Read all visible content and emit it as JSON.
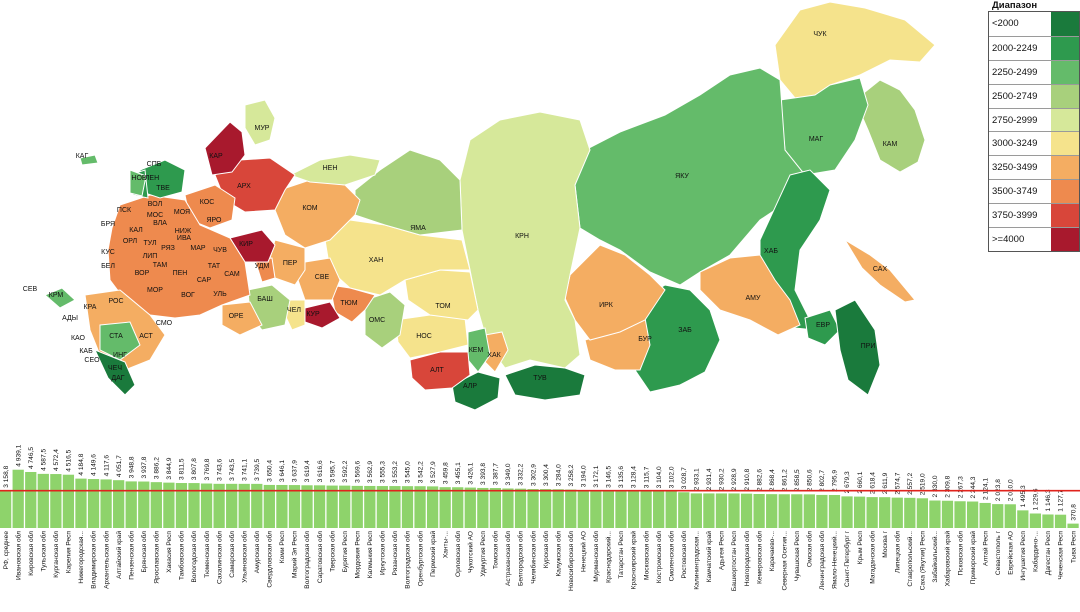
{
  "legend": {
    "title": "Диапазон",
    "items": [
      {
        "label": "<2000",
        "color": "#1a7a3c"
      },
      {
        "label": "2000-2249",
        "color": "#2e9a4e"
      },
      {
        "label": "2250-2499",
        "color": "#64bb6a"
      },
      {
        "label": "2500-2749",
        "color": "#a8d07c"
      },
      {
        "label": "2750-2999",
        "color": "#d6e89a"
      },
      {
        "label": "3000-3249",
        "color": "#f5e38c"
      },
      {
        "label": "3250-3499",
        "color": "#f4ad62"
      },
      {
        "label": "3500-3749",
        "color": "#ee8a4e"
      },
      {
        "label": "3750-3999",
        "color": "#d8463a"
      },
      {
        "label": ">=4000",
        "color": "#a8192d"
      }
    ]
  },
  "map_labels": [
    "ЧУК",
    "МУР",
    "КАР",
    "НЕН",
    "АРХ",
    "КАГ",
    "СПБ",
    "ЛЕН",
    "КОМ",
    "ЯМА",
    "КРН",
    "ЯКУ",
    "МАГ",
    "КАМ",
    "ХАН",
    "ТОМ",
    "НОС",
    "КЕМ",
    "АЛТ",
    "АЛР",
    "ТУВ",
    "ХАК",
    "ИРК",
    "БУР",
    "ЗАБ",
    "АМУ",
    "ХАБ",
    "ЕВР",
    "ПРИ",
    "САХ",
    "СВЕ",
    "ТЮМ",
    "КУР",
    "ОМС",
    "ЧЕЛ",
    "БАШ",
    "ОРЕ",
    "ПЕР",
    "УДМ",
    "КИР",
    "СЕВ",
    "КРМ",
    "АДЫ",
    "КРА",
    "РОС",
    "СТА",
    "КАО",
    "КАБ",
    "СЕО",
    "ИНГ",
    "ЧЕЧ",
    "ДАГ",
    "КАЛ",
    "БРЯ",
    "ОРЛ",
    "КУС",
    "БЕЛ",
    "ВОР",
    "ЛИП",
    "ТУЛ",
    "РЯЗ",
    "ТАМ",
    "ПЕН",
    "МОР",
    "ВОГ",
    "САР",
    "УЛЬ",
    "САМ",
    "ТАТ",
    "ЧУВ",
    "МАР",
    "НИЖ",
    "ИВА",
    "ВЛА",
    "МОС",
    "МОЯ",
    "ЯРО",
    "КОС",
    "ВОЛ",
    "ТВЕ",
    "НОВ",
    "ПСК",
    "СМО",
    "АСТ",
    "КЛМ"
  ],
  "chart_data": {
    "type": "bar",
    "reference_line": 3158.8,
    "categories": [
      "РФ, среднее",
      "Ивановская обл",
      "Кировская обл",
      "Тульская обл",
      "Курганская обл",
      "Карелия Респ",
      "Нижегородская...",
      "Владимирская обл",
      "Архангельская обл",
      "Алтайский край",
      "Пензенская обл",
      "Брянская обл",
      "Ярославская обл",
      "Хакасия Респ",
      "Тамбовская обл",
      "Вологодская обл",
      "Тюменская обл",
      "Сахалинская обл",
      "Самарская обл",
      "Ульяновская обл",
      "Амурская обл",
      "Свердловская обл",
      "Коми Респ",
      "Марий Эл Респ",
      "Волгоградская обл",
      "Саратовская обл",
      "Тверская обл",
      "Бурятия Респ",
      "Мордовия Респ",
      "Калмыкия Респ",
      "Иркутская обл",
      "Рязанская обл",
      "Волгоградская обл",
      "Оренбургская обл",
      "Пермский край",
      "Ханты-...",
      "Орловская обл",
      "Чукотский АО",
      "Удмуртия Респ",
      "Томская обл",
      "Астраханская обл",
      "Белгородская обл",
      "Челябинская обл",
      "Курская обл",
      "Калужская обл",
      "Новосибирская обл",
      "Ненецкий АО",
      "Мурманская обл",
      "Краснодарский...",
      "Татарстан Респ",
      "Красноярский край",
      "Московская обл",
      "Костромская обл",
      "Смоленская обл",
      "Ростовская обл",
      "Калининградская...",
      "Камчатский край",
      "Адыгея Респ",
      "Башкортостан Респ",
      "Новгородская обл",
      "Кемеровская обл",
      "Карачаево-...",
      "Северная Осетия...",
      "Чувашская Респ",
      "Омская обл",
      "Ленинградская обл",
      "Ямало-Ненецкий...",
      "Санкт-Петербург г",
      "Крым Респ",
      "Магаданская обл",
      "Москва г",
      "Липецкая обл",
      "Ставропольский...",
      "Саха (Якутия) Респ",
      "Забайкальский...",
      "Хабаровский край",
      "Псковская обл",
      "Приморский край",
      "Алтай Респ",
      "Севастополь г",
      "Еврейская АО",
      "Ингушетия Респ",
      "Кабардино-...",
      "Дагестан Респ",
      "Чеченская Респ",
      "Тыва Респ"
    ],
    "values": [
      3158.8,
      4939.1,
      4746.5,
      4587.5,
      4572.4,
      4516.5,
      4184.8,
      4149.6,
      4117.6,
      4051.7,
      3948.8,
      3937.8,
      3886.2,
      3844.9,
      3811.5,
      3807.8,
      3769.8,
      3743.6,
      3743.5,
      3741.1,
      3739.5,
      3650.4,
      3646.1,
      3637.9,
      3619.4,
      3616.6,
      3595.7,
      3592.2,
      3569.6,
      3562.9,
      3555.3,
      3553.2,
      3545.0,
      3542.2,
      3527.9,
      3459.8,
      3455.1,
      3426.1,
      3393.8,
      3387.7,
      3349.0,
      3332.2,
      3302.9,
      3300.4,
      3284.0,
      3258.2,
      3194.0,
      3172.1,
      3146.5,
      3135.6,
      3128.4,
      3115.7,
      3104.0,
      3102.0,
      3028.7,
      2933.1,
      2931.4,
      2930.2,
      2928.9,
      2910.8,
      2882.6,
      2868.4,
      2861.2,
      2858.5,
      2850.6,
      2802.7,
      2795.9,
      2679.3,
      2660.1,
      2618.4,
      2611.9,
      2574.7,
      2557.2,
      2519.0,
      2330.0,
      2309.8,
      2267.3,
      2244.3,
      2124.1,
      2023.8,
      2010.0,
      1495.3,
      1229.6,
      1146.3,
      1127.7,
      370.8
    ],
    "value_labels": [
      "3 158,8",
      "4 939,1",
      "4 746,5",
      "4 587,5",
      "4 572,4",
      "4 516,5",
      "4 184,8",
      "4 149,6",
      "4 117,6",
      "4 051,7",
      "3 948,8",
      "3 937,8",
      "3 886,2",
      "3 844,9",
      "3 811,5",
      "3 807,8",
      "3 769,8",
      "3 743,6",
      "3 743,5",
      "3 741,1",
      "3 739,5",
      "3 650,4",
      "3 646,1",
      "3 637,9",
      "3 619,4",
      "3 616,6",
      "3 595,7",
      "3 592,2",
      "3 569,6",
      "3 562,9",
      "3 555,3",
      "3 553,2",
      "3 545,0",
      "3 542,2",
      "3 527,9",
      "3 459,8",
      "3 455,1",
      "3 426,1",
      "3 393,8",
      "3 387,7",
      "3 349,0",
      "3 332,2",
      "3 302,9",
      "3 300,4",
      "3 284,0",
      "3 258,2",
      "3 194,0",
      "3 172,1",
      "3 146,5",
      "3 135,6",
      "3 128,4",
      "3 115,7",
      "3 104,0",
      "3 102,0",
      "3 028,7",
      "2 933,1",
      "2 931,4",
      "2 930,2",
      "2 928,9",
      "2 910,8",
      "2 882,6",
      "2 868,4",
      "2 861,2",
      "2 858,5",
      "2 850,6",
      "2 802,7",
      "2 795,9",
      "2 679,3",
      "2 660,1",
      "2 618,4",
      "2 611,9",
      "2 574,7",
      "2 557,2",
      "2 519,0",
      "2 330,0",
      "2 309,8",
      "2 267,3",
      "2 244,3",
      "2 124,1",
      "2 023,8",
      "2 010,0",
      "1 495,3",
      "1 229,6",
      "1 146,3",
      "1 127,7",
      "370,8"
    ],
    "bar_color": "#8ed36b",
    "line_color": "#e0231c"
  }
}
